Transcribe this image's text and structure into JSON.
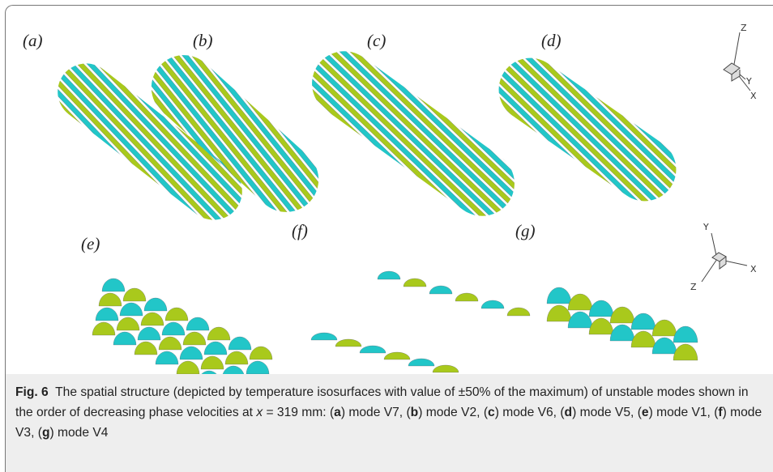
{
  "panels": {
    "labels": [
      "(a)",
      "(b)",
      "(c)",
      "(d)",
      "(e)",
      "(f)",
      "(g)"
    ]
  },
  "axes_top": {
    "z": "Z",
    "y": "Y",
    "x": "X"
  },
  "axes_bottom": {
    "y": "Y",
    "x": "X",
    "z": "Z"
  },
  "caption": {
    "label": "Fig. 6",
    "intro": "The spatial structure (depicted by temperature isosurfaces with value of ±50% of the maximum) of unstable modes shown in the order of decreasing phase velocities at",
    "variable": "x",
    "equals": "= 319 mm:",
    "items": [
      {
        "before": "(",
        "letter": "a",
        "after": ") mode V7,"
      },
      {
        "before": "(",
        "letter": "b",
        "after": ") mode V2,"
      },
      {
        "before": "(",
        "letter": "c",
        "after": ") mode V6,"
      },
      {
        "before": "(",
        "letter": "d",
        "after": ") mode V5,"
      },
      {
        "before": "(",
        "letter": "e",
        "after": ") mode V1,"
      },
      {
        "before": "(",
        "letter": "f",
        "after": ") mode V3,"
      },
      {
        "before": "(",
        "letter": "g",
        "after": ") mode V4"
      }
    ]
  }
}
